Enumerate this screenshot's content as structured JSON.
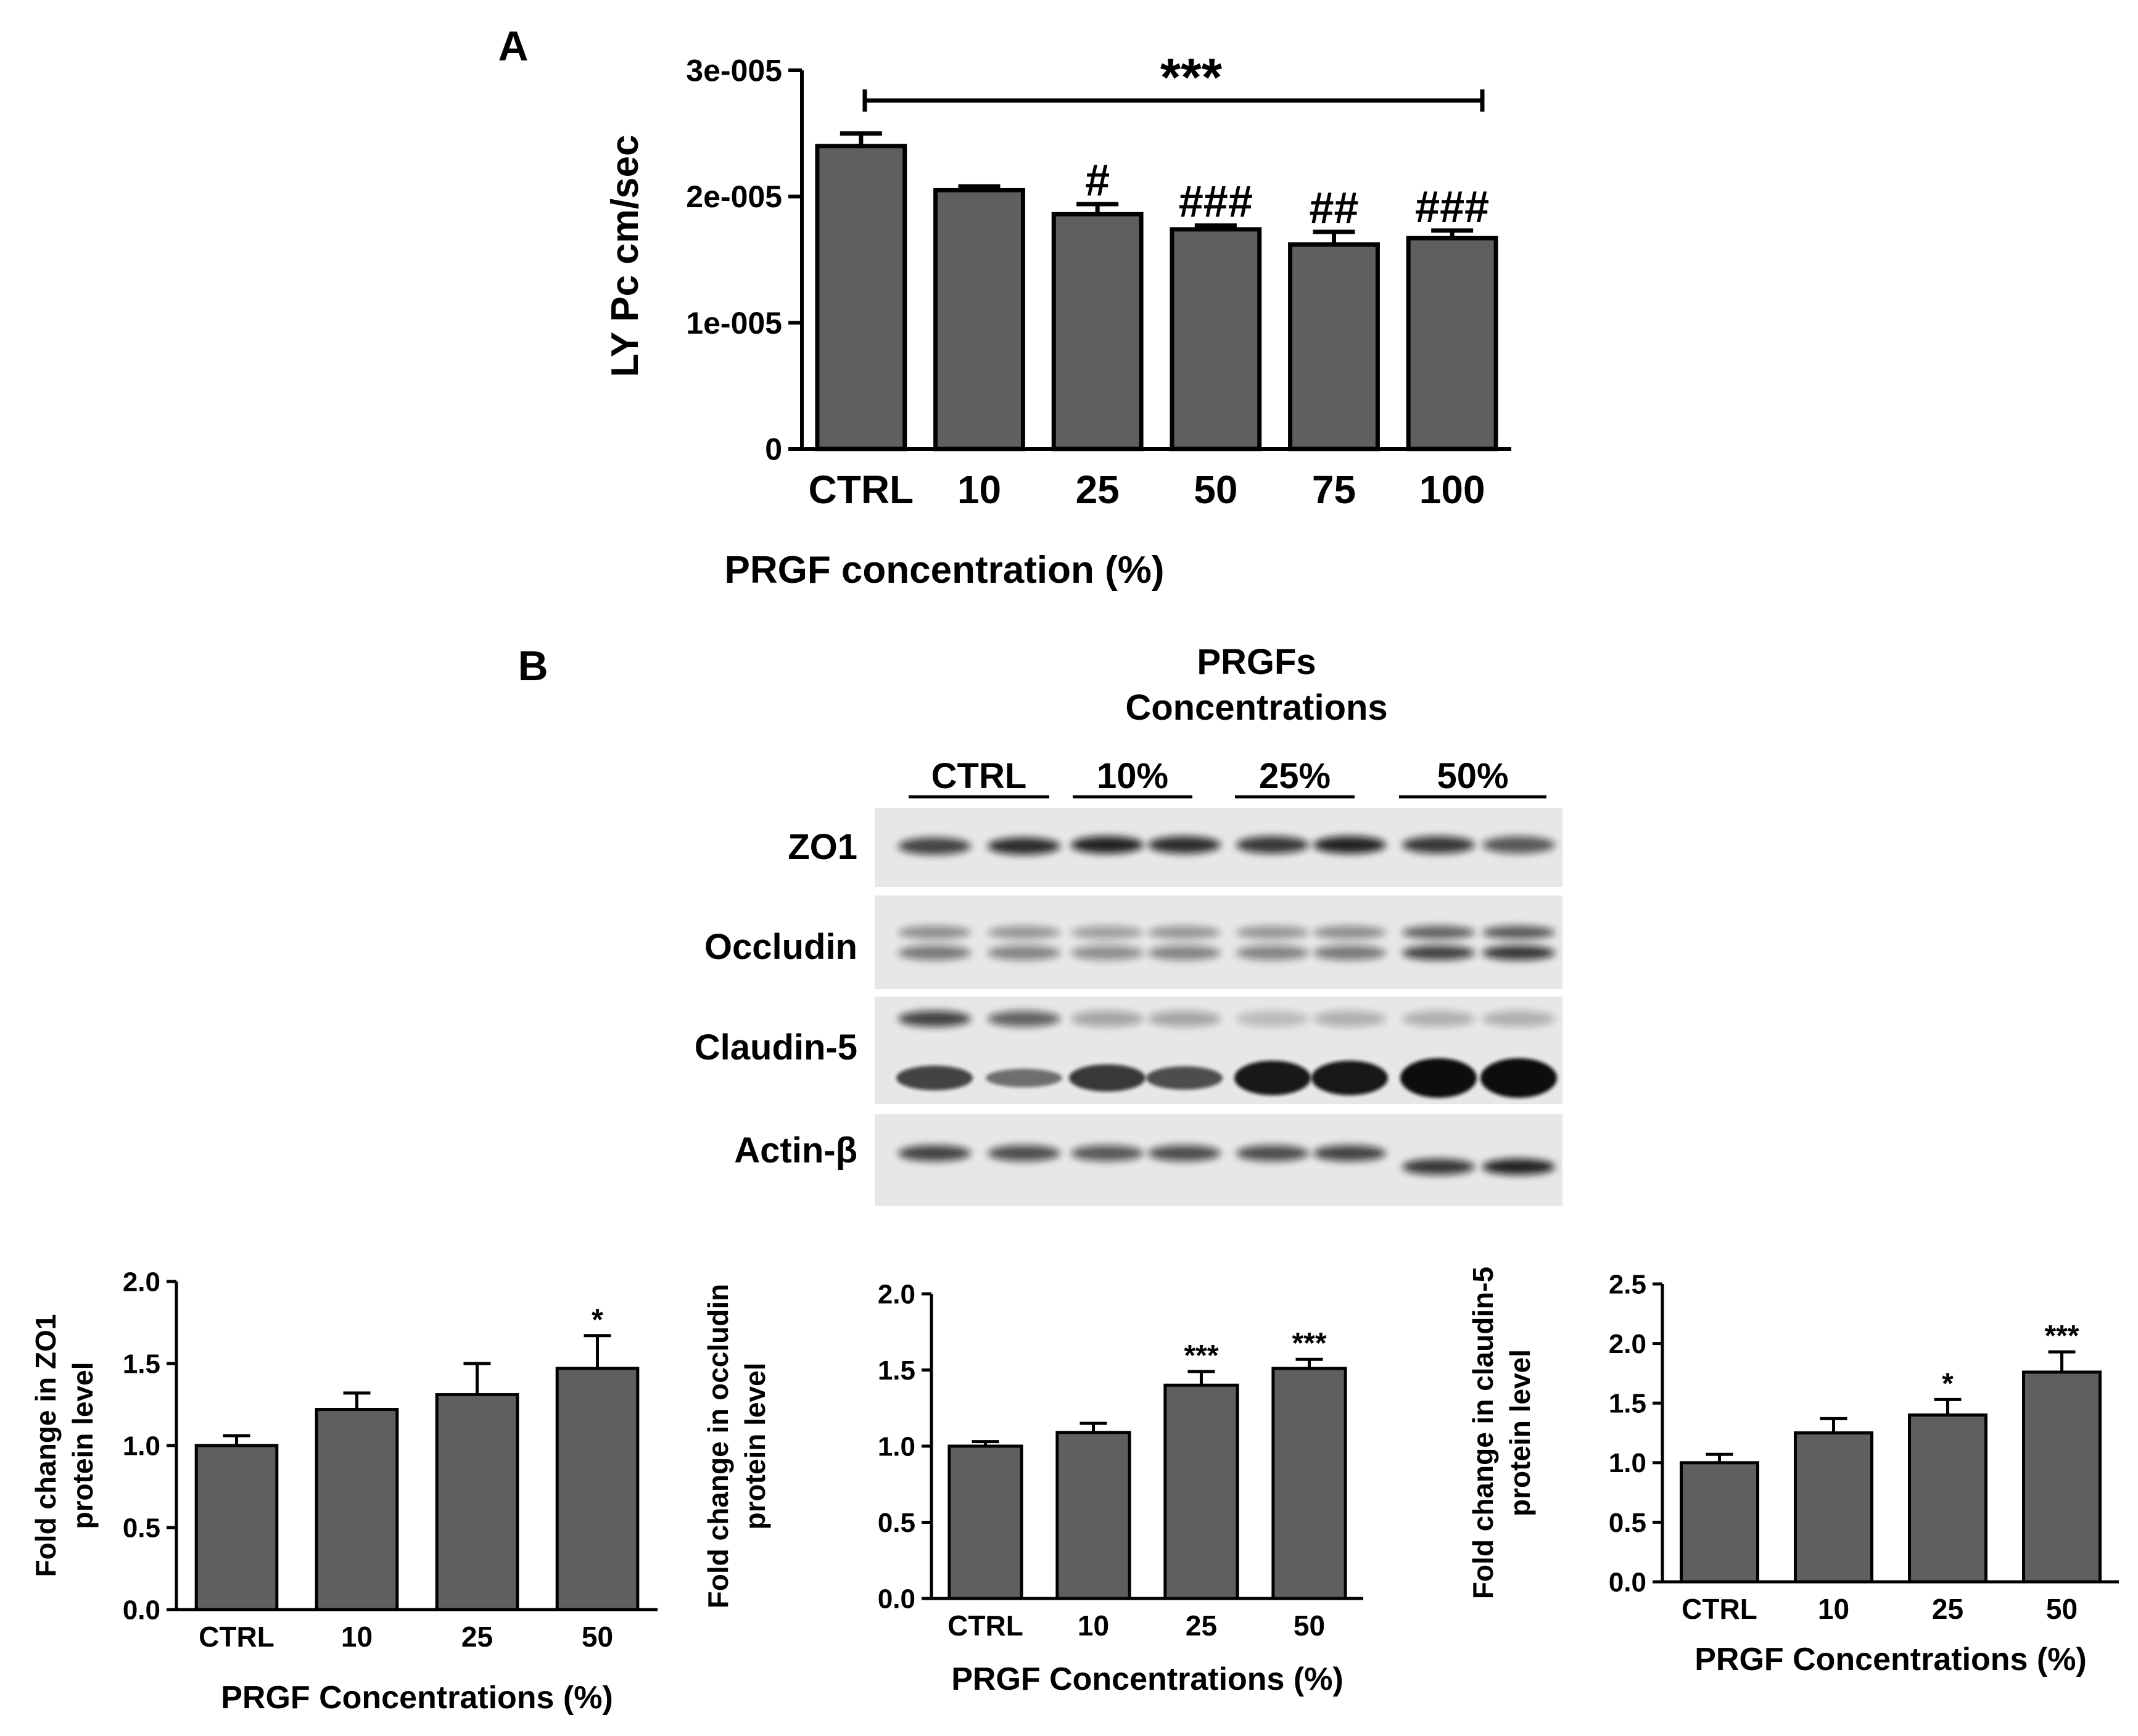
{
  "panel_a": {
    "label": "A",
    "significance": "***",
    "chart_data": {
      "type": "bar",
      "categories": [
        "CTRL",
        "10",
        "25",
        "50",
        "75",
        "100"
      ],
      "values": [
        2.4e-05,
        2.05e-05,
        1.86e-05,
        1.74e-05,
        1.62e-05,
        1.67e-05
      ],
      "errors": [
        1e-06,
        3e-07,
        8e-07,
        3e-07,
        1e-06,
        6e-07
      ],
      "annotations": [
        "",
        "",
        "#",
        "###",
        "##",
        "###"
      ],
      "ylim": [
        0,
        3e-05
      ],
      "yticks": [
        0,
        1e-05,
        2e-05,
        3e-05
      ],
      "ytick_labels": [
        "0",
        "1e-005",
        "2e-005",
        "3e-005"
      ],
      "xlabel": "PRGF concentration (%)",
      "ylabel": "LY Pc cm/sec",
      "bar_color": "#5f5f5f"
    }
  },
  "panel_b": {
    "label": "B",
    "blot_title_line1": "PRGFs",
    "blot_title_line2": "Concentrations",
    "group_labels": [
      "CTRL",
      "10%",
      "25%",
      "50%"
    ],
    "blot_rows": [
      "ZO1",
      "Occludin",
      "Claudin-5",
      "Actin-β"
    ]
  },
  "chart_data": [
    {
      "type": "bar",
      "categories": [
        "CTRL",
        "10",
        "25",
        "50"
      ],
      "values": [
        1.0,
        1.22,
        1.31,
        1.47
      ],
      "errors": [
        0.06,
        0.1,
        0.19,
        0.2
      ],
      "annotations": [
        "",
        "",
        "",
        "*"
      ],
      "ylim": [
        0,
        2.0
      ],
      "yticks": [
        0,
        0.5,
        1.0,
        1.5,
        2.0
      ],
      "ytick_labels": [
        "0.0",
        "0.5",
        "1.0",
        "1.5",
        "2.0"
      ],
      "xlabel": "PRGF Concentrations (%)",
      "ylabel_line1": "Fold change in ZO1",
      "ylabel_line2": "protein level",
      "bar_color": "#5f5f5f"
    },
    {
      "type": "bar",
      "categories": [
        "CTRL",
        "10",
        "25",
        "50"
      ],
      "values": [
        1.0,
        1.09,
        1.4,
        1.51
      ],
      "errors": [
        0.03,
        0.06,
        0.09,
        0.06
      ],
      "annotations": [
        "",
        "",
        "***",
        "***"
      ],
      "ylim": [
        0,
        2.0
      ],
      "yticks": [
        0,
        0.5,
        1.0,
        1.5,
        2.0
      ],
      "ytick_labels": [
        "0.0",
        "0.5",
        "1.0",
        "1.5",
        "2.0"
      ],
      "xlabel": "PRGF Concentrations (%)",
      "ylabel_line1": "Fold change in occludin",
      "ylabel_line2": "protein level",
      "bar_color": "#5f5f5f"
    },
    {
      "type": "bar",
      "categories": [
        "CTRL",
        "10",
        "25",
        "50"
      ],
      "values": [
        1.0,
        1.25,
        1.4,
        1.76
      ],
      "errors": [
        0.07,
        0.12,
        0.13,
        0.17
      ],
      "annotations": [
        "",
        "",
        "*",
        "***"
      ],
      "ylim": [
        0,
        2.5
      ],
      "yticks": [
        0,
        0.5,
        1.0,
        1.5,
        2.0,
        2.5
      ],
      "ytick_labels": [
        "0.0",
        "0.5",
        "1.0",
        "1.5",
        "2.0",
        "2.5"
      ],
      "xlabel": "PRGF Concentrations (%)",
      "ylabel_line1": "Fold change in claudin-5",
      "ylabel_line2": "protein level",
      "bar_color": "#5f5f5f"
    }
  ]
}
